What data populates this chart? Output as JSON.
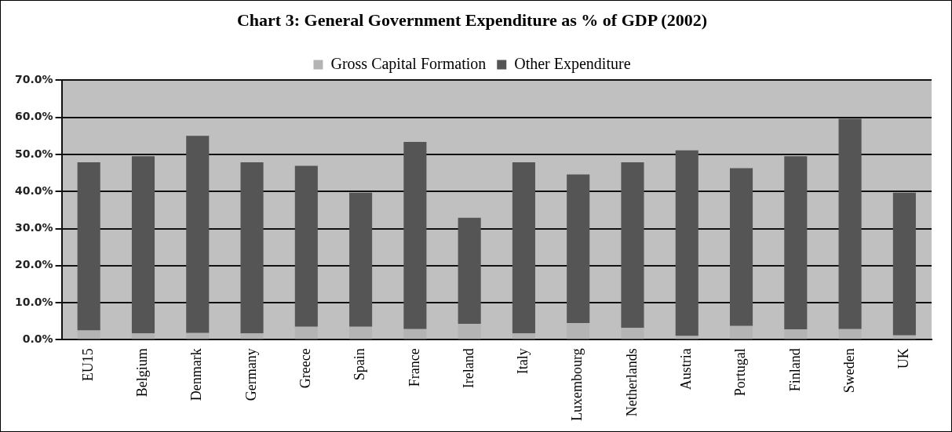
{
  "chart_data": {
    "type": "bar",
    "title": "Chart 3: General Government Expenditure as % of GDP (2002)",
    "stacked": true,
    "legend": "top",
    "grid": "y",
    "categories": [
      "EU15",
      "Belgium",
      "Denmark",
      "Germany",
      "Greece",
      "Spain",
      "France",
      "Ireland",
      "Italy",
      "Luxembourg",
      "Netherlands",
      "Austria",
      "Portugal",
      "Finland",
      "Sweden",
      "UK"
    ],
    "series": [
      {
        "name": "Gross Capital Formation",
        "color": "#b4b4b4",
        "values": [
          2.5,
          1.7,
          1.8,
          1.7,
          3.5,
          3.5,
          2.9,
          4.3,
          1.7,
          4.5,
          3.2,
          1.0,
          3.7,
          2.8,
          2.9,
          1.2
        ]
      },
      {
        "name": "Other Expenditure",
        "color": "#555555",
        "values": [
          45.4,
          47.8,
          53.2,
          46.2,
          43.4,
          36.2,
          50.5,
          28.6,
          46.2,
          40.1,
          44.7,
          50.1,
          42.6,
          46.7,
          56.7,
          38.5
        ]
      }
    ],
    "ylim": [
      0,
      70
    ],
    "yticks": [
      {
        "value": 0,
        "label": "0.0%"
      },
      {
        "value": 10,
        "label": "10.0%"
      },
      {
        "value": 20,
        "label": "20.0%"
      },
      {
        "value": 30,
        "label": "30.0%"
      },
      {
        "value": 40,
        "label": "40.0%"
      },
      {
        "value": 50,
        "label": "50.0%"
      },
      {
        "value": 60,
        "label": "60.0%"
      },
      {
        "value": 70,
        "label": "70.0%"
      }
    ]
  }
}
